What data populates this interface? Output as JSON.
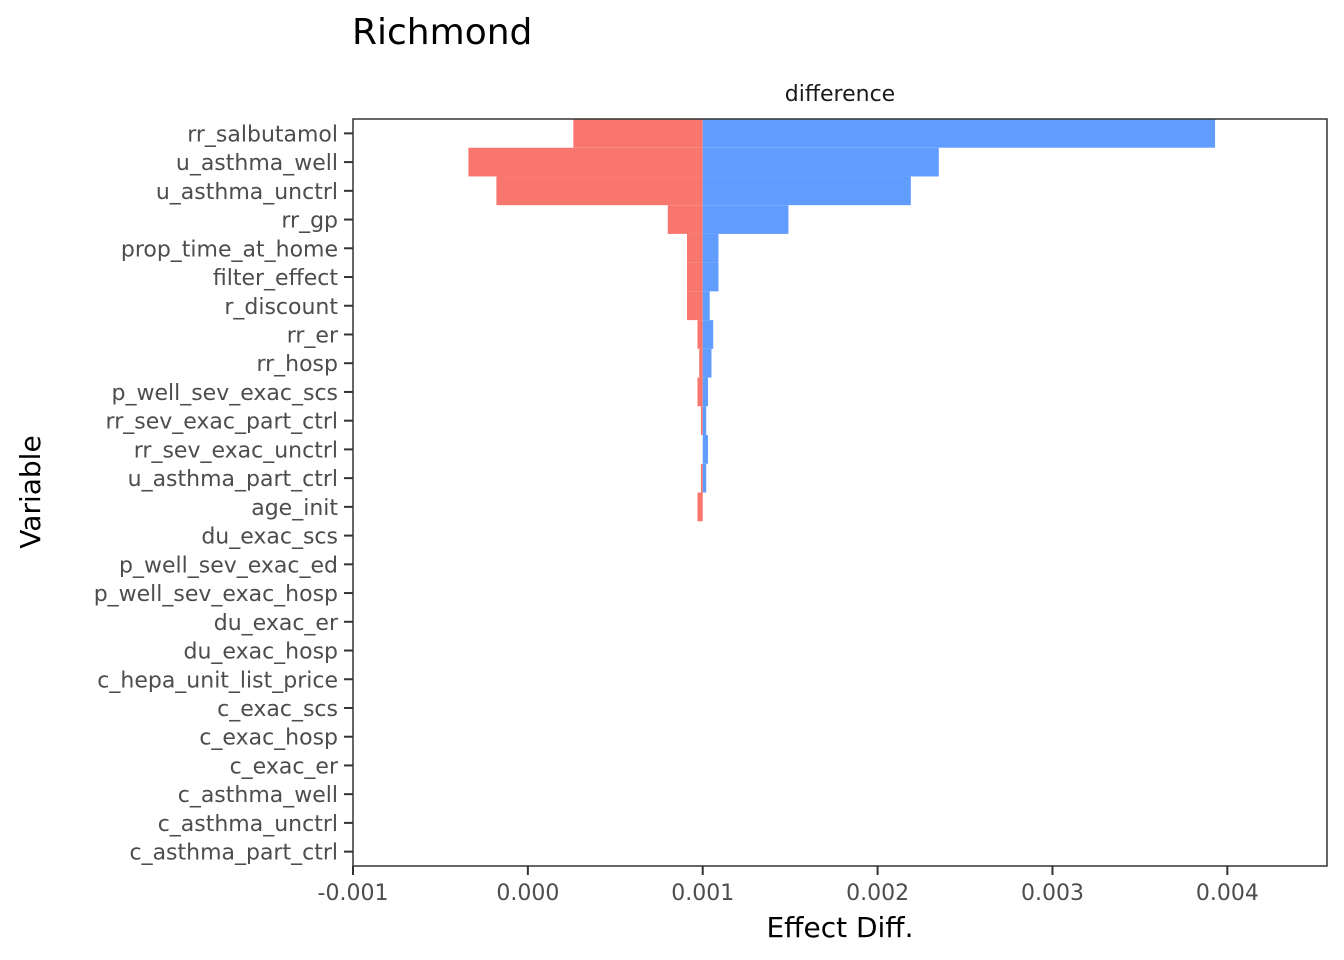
{
  "chart_data": {
    "type": "bar",
    "orientation": "horizontal",
    "title": "Richmond",
    "facet_label": "difference",
    "xlabel": "Effect Diff.",
    "ylabel": "Variable",
    "base_value": 0.001,
    "xlim": [
      -0.001,
      0.00457
    ],
    "x_ticks": [
      -0.001,
      0.0,
      0.001,
      0.002,
      0.003,
      0.004
    ],
    "x_tick_labels": [
      "-0.001",
      "0.000",
      "0.001",
      "0.002",
      "0.003",
      "0.004"
    ],
    "grid": false,
    "colors": {
      "low": "#F8766D",
      "high": "#619CFF"
    },
    "categories": [
      "rr_salbutamol",
      "u_asthma_well",
      "u_asthma_unctrl",
      "rr_gp",
      "prop_time_at_home",
      "filter_effect",
      "r_discount",
      "rr_er",
      "rr_hosp",
      "p_well_sev_exac_scs",
      "rr_sev_exac_part_ctrl",
      "rr_sev_exac_unctrl",
      "u_asthma_part_ctrl",
      "age_init",
      "du_exac_scs",
      "p_well_sev_exac_ed",
      "p_well_sev_exac_hosp",
      "du_exac_er",
      "du_exac_hosp",
      "c_hepa_unit_list_price",
      "c_exac_scs",
      "c_exac_hosp",
      "c_exac_er",
      "c_asthma_well",
      "c_asthma_unctrl",
      "c_asthma_part_ctrl"
    ],
    "series": [
      {
        "values": [
          0.00026,
          -0.00034,
          -0.00018,
          0.0008,
          0.00091,
          0.00091,
          0.00091,
          0.00097,
          0.00098,
          0.00097,
          0.00099,
          0.001,
          0.00099,
          0.00097,
          0.001,
          0.001,
          0.001,
          0.001,
          0.001,
          0.001,
          0.001,
          0.001,
          0.001,
          0.001,
          0.001,
          0.001
        ]
      },
      {
        "values": [
          0.00393,
          0.00235,
          0.00219,
          0.00149,
          0.00109,
          0.00109,
          0.00104,
          0.00106,
          0.00105,
          0.00103,
          0.00102,
          0.00103,
          0.00102,
          0.001,
          0.001,
          0.001,
          0.001,
          0.001,
          0.001,
          0.001,
          0.001,
          0.001,
          0.001,
          0.001,
          0.001,
          0.001
        ]
      }
    ]
  }
}
